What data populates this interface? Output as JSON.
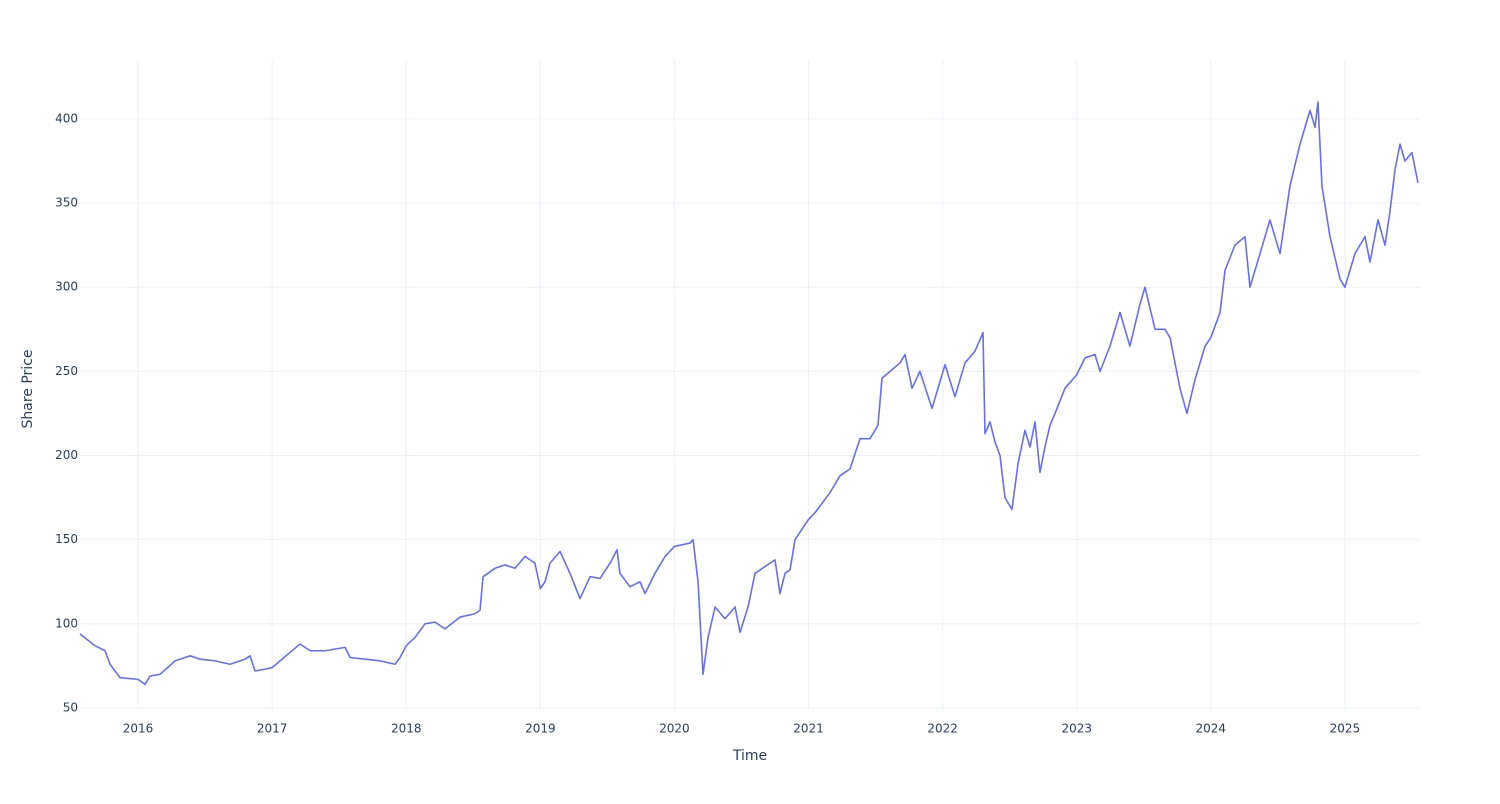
{
  "chart_data": {
    "type": "line",
    "x_label": "Time",
    "y_label": "Share Price",
    "color": "#636efa",
    "grid": true,
    "xlim": [
      2015.567,
      2025.56
    ],
    "ylim": [
      48.8,
      435
    ],
    "xticks": [
      2016,
      2017,
      2018,
      2019,
      2020,
      2021,
      2022,
      2023,
      2024,
      2025
    ],
    "yticks": [
      50,
      100,
      150,
      200,
      250,
      300,
      350,
      400
    ],
    "x": [
      2015.567,
      2015.679,
      2015.754,
      2015.791,
      2015.828,
      2015.866,
      2016.0,
      2016.052,
      2016.089,
      2016.164,
      2016.276,
      2016.388,
      2016.462,
      2016.574,
      2016.686,
      2016.798,
      2016.835,
      2016.872,
      2016.947,
      2017.0,
      2017.059,
      2017.133,
      2017.208,
      2017.283,
      2017.394,
      2017.544,
      2017.581,
      2017.693,
      2017.805,
      2017.916,
      2017.954,
      2018.0,
      2018.066,
      2018.14,
      2018.215,
      2018.289,
      2018.401,
      2018.513,
      2018.55,
      2018.573,
      2018.662,
      2018.737,
      2018.811,
      2018.886,
      2018.96,
      2019.0,
      2019.035,
      2019.072,
      2019.147,
      2019.221,
      2019.296,
      2019.371,
      2019.445,
      2019.52,
      2019.572,
      2019.594,
      2019.669,
      2019.743,
      2019.781,
      2019.855,
      2019.93,
      2020.0,
      2020.116,
      2020.139,
      2020.176,
      2020.213,
      2020.251,
      2020.303,
      2020.377,
      2020.452,
      2020.489,
      2020.549,
      2020.601,
      2020.676,
      2020.75,
      2020.787,
      2020.825,
      2020.862,
      2020.899,
      2021.0,
      2021.048,
      2021.086,
      2021.16,
      2021.235,
      2021.309,
      2021.384,
      2021.458,
      2021.518,
      2021.548,
      2021.608,
      2021.682,
      2021.72,
      2021.772,
      2021.831,
      2021.921,
      2022.018,
      2022.092,
      2022.167,
      2022.241,
      2022.301,
      2022.316,
      2022.353,
      2022.391,
      2022.428,
      2022.465,
      2022.517,
      2022.562,
      2022.614,
      2022.652,
      2022.689,
      2022.726,
      2022.763,
      2022.801,
      2022.838,
      2022.913,
      2023.0,
      2023.062,
      2023.136,
      2023.174,
      2023.248,
      2023.323,
      2023.397,
      2023.472,
      2023.509,
      2023.584,
      2023.658,
      2023.696,
      2023.77,
      2023.822,
      2023.882,
      2023.957,
      2024.0,
      2024.069,
      2024.106,
      2024.18,
      2024.255,
      2024.292,
      2024.367,
      2024.441,
      2024.516,
      2024.59,
      2024.665,
      2024.74,
      2024.777,
      2024.799,
      2024.829,
      2024.889,
      2024.963,
      2025.0,
      2025.075,
      2025.15,
      2025.187,
      2025.247,
      2025.299,
      2025.336,
      2025.374,
      2025.411,
      2025.448,
      2025.5,
      2025.545
    ],
    "values": [
      94,
      87,
      84,
      76,
      72,
      68,
      67,
      64,
      69,
      70,
      78,
      81,
      79,
      78,
      76,
      79,
      81,
      72,
      73,
      74,
      78,
      83,
      88,
      84,
      84,
      86,
      80,
      79,
      78,
      76,
      80,
      87,
      92,
      100,
      101,
      97,
      104,
      106,
      108,
      128,
      133,
      135,
      133,
      140,
      136,
      121,
      125,
      136,
      143,
      130,
      115,
      128,
      127,
      136,
      144,
      130,
      122,
      125,
      118,
      130,
      140,
      146,
      148,
      150,
      125,
      70,
      92,
      110,
      103,
      110,
      95,
      110,
      130,
      134,
      138,
      118,
      130,
      132,
      150,
      162,
      166,
      170,
      178,
      188,
      192,
      210,
      210,
      218,
      246,
      250,
      255,
      260,
      240,
      250,
      228,
      254,
      235,
      255,
      262,
      273,
      213,
      220,
      208,
      200,
      175,
      168,
      195,
      215,
      205,
      220,
      190,
      205,
      218,
      225,
      240,
      248,
      258,
      260,
      250,
      265,
      285,
      265,
      290,
      300,
      275,
      275,
      270,
      240,
      225,
      245,
      265,
      270,
      285,
      310,
      325,
      330,
      300,
      320,
      340,
      320,
      360,
      385,
      405,
      395,
      410,
      360,
      330,
      305,
      300,
      320,
      330,
      315,
      340,
      325,
      345,
      370,
      385,
      375,
      380,
      362
    ]
  }
}
